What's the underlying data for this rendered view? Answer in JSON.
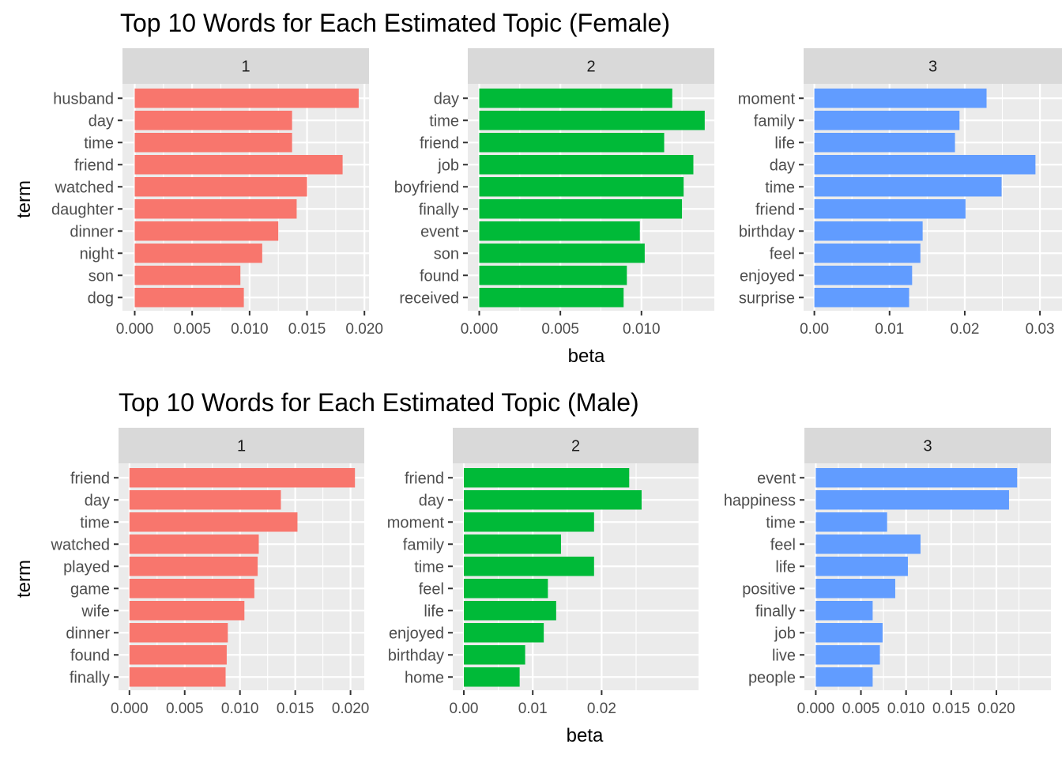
{
  "colors": {
    "panel_bg": "#EBEBEB",
    "strip_bg": "#D9D9D9",
    "grid": "#FFFFFF",
    "tick_text": "#4D4D4D",
    "axis_text": "#000000",
    "topic_1": "#F8766D",
    "topic_2": "#00BA38",
    "topic_3": "#619CFF"
  },
  "chart_data": [
    {
      "type": "bar",
      "orientation": "horizontal",
      "title": "Top 10 Words for Each Estimated Topic (Female)",
      "xlabel": "beta",
      "ylabel": "term",
      "grid": true,
      "legend": "none",
      "facets": [
        {
          "strip": "1",
          "color": "#F8766D",
          "xlim": [
            0,
            0.02
          ],
          "ticks": [
            0,
            0.005,
            0.01,
            0.015,
            0.02
          ],
          "tick_labels": [
            "0.000",
            "0.005",
            "0.010",
            "0.015",
            "0.020"
          ],
          "categories": [
            "husband",
            "day",
            "time",
            "friend",
            "watched",
            "daughter",
            "dinner",
            "night",
            "son",
            "dog"
          ],
          "values": [
            0.0195,
            0.0137,
            0.0137,
            0.0181,
            0.015,
            0.0141,
            0.0125,
            0.0111,
            0.0092,
            0.0095
          ]
        },
        {
          "strip": "2",
          "color": "#00BA38",
          "xlim": [
            0,
            0.0138
          ],
          "ticks": [
            0,
            0.005,
            0.01
          ],
          "tick_labels": [
            "0.000",
            "0.005",
            "0.010"
          ],
          "categories": [
            "day",
            "time",
            "friend",
            "job",
            "boyfriend",
            "finally",
            "event",
            "son",
            "found",
            "received"
          ],
          "values": [
            0.0119,
            0.0139,
            0.0114,
            0.0132,
            0.0126,
            0.0125,
            0.0099,
            0.0102,
            0.0091,
            0.0089
          ]
        },
        {
          "strip": "3",
          "color": "#619CFF",
          "xlim": [
            0,
            0.03
          ],
          "ticks": [
            0,
            0.01,
            0.02,
            0.03
          ],
          "tick_labels": [
            "0.00",
            "0.01",
            "0.02",
            "0.03"
          ],
          "categories": [
            "moment",
            "family",
            "life",
            "day",
            "time",
            "friend",
            "birthday",
            "feel",
            "enjoyed",
            "surprise"
          ],
          "values": [
            0.0229,
            0.0193,
            0.0187,
            0.0294,
            0.0249,
            0.0201,
            0.0144,
            0.0141,
            0.013,
            0.0126
          ]
        }
      ]
    },
    {
      "type": "bar",
      "orientation": "horizontal",
      "title": "Top 10 Words for Each Estimated Topic (Male)",
      "xlabel": "beta",
      "ylabel": "term",
      "grid": true,
      "legend": "none",
      "facets": [
        {
          "strip": "1",
          "color": "#F8766D",
          "xlim": [
            0,
            0.02
          ],
          "ticks": [
            0,
            0.005,
            0.01,
            0.015,
            0.02
          ],
          "tick_labels": [
            "0.000",
            "0.005",
            "0.010",
            "0.015",
            "0.020"
          ],
          "categories": [
            "friend",
            "day",
            "time",
            "watched",
            "played",
            "game",
            "wife",
            "dinner",
            "found",
            "finally"
          ],
          "values": [
            0.0204,
            0.0137,
            0.0152,
            0.0117,
            0.0116,
            0.0113,
            0.0104,
            0.0089,
            0.0088,
            0.0087
          ]
        },
        {
          "strip": "2",
          "color": "#00BA38",
          "xlim": [
            0,
            0.025
          ],
          "ticks": [
            0,
            0.01,
            0.02
          ],
          "tick_labels": [
            "0.00",
            "0.01",
            "0.02"
          ],
          "categories": [
            "friend",
            "day",
            "moment",
            "family",
            "time",
            "feel",
            "life",
            "enjoyed",
            "birthday",
            "home"
          ],
          "values": [
            0.024,
            0.0258,
            0.0189,
            0.0141,
            0.0189,
            0.0122,
            0.0134,
            0.0116,
            0.0089,
            0.0081
          ]
        },
        {
          "strip": "3",
          "color": "#619CFF",
          "xlim": [
            0,
            0.022
          ],
          "ticks": [
            0,
            0.005,
            0.01,
            0.015,
            0.02
          ],
          "tick_labels": [
            "0.000",
            "0.005",
            "0.010",
            "0.015",
            "0.020"
          ],
          "categories": [
            "event",
            "happiness",
            "time",
            "feel",
            "life",
            "positive",
            "finally",
            "job",
            "live",
            "people"
          ],
          "values": [
            0.0223,
            0.0214,
            0.0079,
            0.0116,
            0.0102,
            0.0088,
            0.0063,
            0.0074,
            0.0071,
            0.0063
          ]
        }
      ]
    }
  ]
}
